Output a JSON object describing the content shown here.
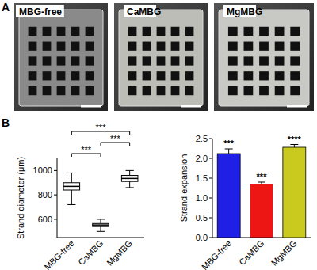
{
  "panel_labels": [
    "A",
    "B"
  ],
  "images": [
    {
      "label": "MBG-free"
    },
    {
      "label": "CaMBG"
    },
    {
      "label": "MgMBG"
    }
  ],
  "chart_data": [
    {
      "type": "box",
      "y_label": "Strand diameter (μm)",
      "categories": [
        "MBG-free",
        "CaMBG",
        "MgMBG"
      ],
      "min": [
        720,
        500,
        860
      ],
      "q1": [
        840,
        540,
        910
      ],
      "median": [
        870,
        553,
        935
      ],
      "q3": [
        900,
        565,
        960
      ],
      "max": [
        980,
        600,
        1000
      ],
      "ylim": [
        450,
        1100
      ],
      "yticks": [
        600,
        800,
        1000
      ],
      "color": "#ffffff",
      "annotations": [
        {
          "text": "***",
          "between": [
            0,
            1
          ]
        },
        {
          "text": "***",
          "between": [
            0,
            2
          ]
        },
        {
          "text": "***",
          "between": [
            1,
            2
          ]
        }
      ]
    },
    {
      "type": "bar",
      "y_label": "Strand expansion",
      "categories": [
        "MBG-free",
        "CaMBG",
        "MgMBG"
      ],
      "values": [
        2.12,
        1.35,
        2.28
      ],
      "errors": [
        0.12,
        0.05,
        0.07
      ],
      "colors": [
        "#1f1fe6",
        "#ee1515",
        "#c9c91e"
      ],
      "ylim": [
        0,
        2.5
      ],
      "yticks": [
        {
          "value": 0,
          "label": "0.0"
        },
        {
          "value": 0.5,
          "label": "0.5"
        },
        {
          "value": 1,
          "label": "1.0"
        },
        {
          "value": 1.5,
          "label": "1.5"
        },
        {
          "value": 2,
          "label": "2.0"
        },
        {
          "value": 2.5,
          "label": "2.5"
        }
      ],
      "annotations": [
        "***",
        "***",
        "****"
      ]
    }
  ]
}
